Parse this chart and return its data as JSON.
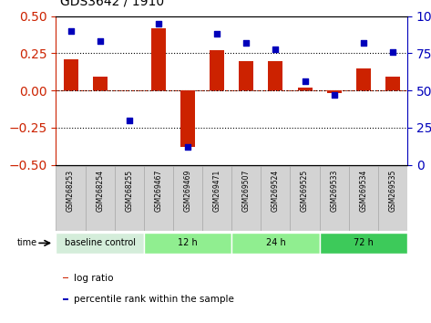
{
  "title": "GDS3642 / 1910",
  "samples": [
    "GSM268253",
    "GSM268254",
    "GSM268255",
    "GSM269467",
    "GSM269469",
    "GSM269471",
    "GSM269507",
    "GSM269524",
    "GSM269525",
    "GSM269533",
    "GSM269534",
    "GSM269535"
  ],
  "log_ratio": [
    0.21,
    0.09,
    0.0,
    0.42,
    -0.38,
    0.27,
    0.2,
    0.2,
    0.02,
    -0.02,
    0.15,
    0.09
  ],
  "percentile_rank": [
    90,
    83,
    30,
    95,
    12,
    88,
    82,
    78,
    56,
    47,
    82,
    76
  ],
  "ylim_left": [
    -0.5,
    0.5
  ],
  "ylim_right": [
    0,
    100
  ],
  "yticks_left": [
    -0.5,
    -0.25,
    0,
    0.25,
    0.5
  ],
  "yticks_right": [
    0,
    25,
    50,
    75,
    100
  ],
  "hlines": [
    0.25,
    0.0,
    -0.25
  ],
  "bar_color": "#cc2200",
  "dot_color": "#0000bb",
  "bar_width": 0.5,
  "groups": [
    {
      "label": "baseline control",
      "start": 0,
      "end": 3,
      "color": "#d4edda"
    },
    {
      "label": "12 h",
      "start": 3,
      "end": 6,
      "color": "#90ee90"
    },
    {
      "label": "24 h",
      "start": 6,
      "end": 9,
      "color": "#90ee90"
    },
    {
      "label": "72 h",
      "start": 9,
      "end": 12,
      "color": "#3dca5a"
    }
  ],
  "time_label": "time",
  "legend_bar_label": "log ratio",
  "legend_dot_label": "percentile rank within the sample",
  "bg_color": "#ffffff",
  "plot_bg": "#ffffff",
  "tick_label_color_left": "#cc2200",
  "tick_label_color_right": "#0000bb",
  "sample_box_color": "#d3d3d3",
  "sample_box_edge": "#aaaaaa"
}
